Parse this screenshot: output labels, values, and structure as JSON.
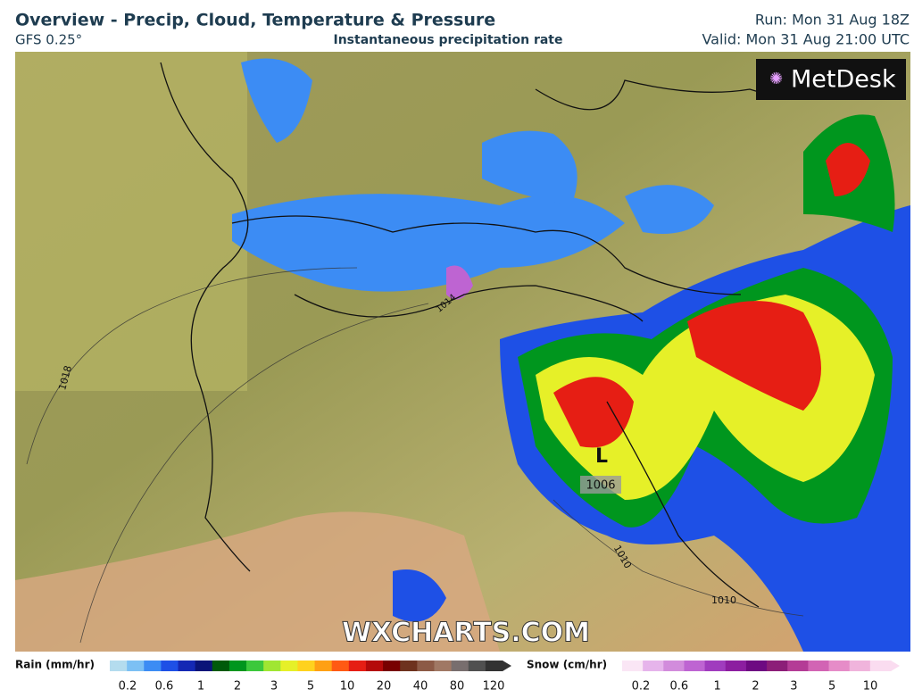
{
  "header": {
    "title": "Overview - Precip, Cloud, Temperature & Pressure",
    "model": "GFS 0.25°",
    "subtitle": "Instantaneous precipitation rate",
    "run": "Run: Mon 31 Aug 18Z",
    "valid": "Valid: Mon 31 Aug 21:00 UTC"
  },
  "map": {
    "brand": "MetDesk",
    "watermark": "WXCHARTS.COM",
    "low_marker": "L",
    "isobars": [
      "1018",
      "1014",
      "1006",
      "1010",
      "1010"
    ]
  },
  "legend": {
    "rain": {
      "label": "Rain (mm/hr)",
      "ticks": [
        "0.2",
        "0.6",
        "1",
        "2",
        "3",
        "5",
        "10",
        "20",
        "40",
        "80",
        "120"
      ],
      "colors": [
        "#b4dcee",
        "#7cc0f4",
        "#3c8cf4",
        "#1e50e6",
        "#1428b4",
        "#0a1478",
        "#005a0a",
        "#00961e",
        "#3cc83c",
        "#a0e632",
        "#e6f028",
        "#ffd21e",
        "#ffa014",
        "#ff5a14",
        "#e61e14",
        "#b40a0a",
        "#780000",
        "#6e321e",
        "#8c5a46",
        "#a07864",
        "#786e6e",
        "#505050",
        "#323232"
      ]
    },
    "snow": {
      "label": "Snow (cm/hr)",
      "ticks": [
        "0.2",
        "0.6",
        "1",
        "2",
        "3",
        "5",
        "10"
      ],
      "colors": [
        "#fae6f5",
        "#e6b4eb",
        "#d28cdc",
        "#be64d2",
        "#a03cbe",
        "#8c1ea0",
        "#6e0a82",
        "#8c1e78",
        "#b43c96",
        "#d264b4",
        "#e68cc8",
        "#f0b4dc",
        "#fadcf0"
      ]
    }
  }
}
